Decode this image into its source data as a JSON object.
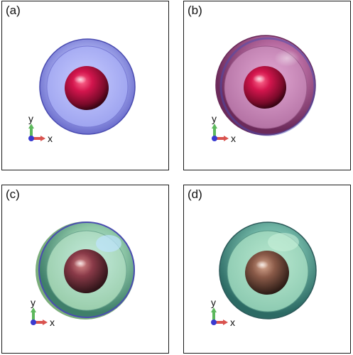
{
  "panels": [
    {
      "label": "(a)"
    },
    {
      "label": "(b)"
    },
    {
      "label": "(c)"
    },
    {
      "label": "(d)"
    }
  ],
  "axes": {
    "x_label": "x",
    "y_label": "y"
  },
  "colors": {
    "outer_blue": "#5f5fc8",
    "outer_magenta": "#9a3a78",
    "outer_green": "#4f9a7a",
    "core_red": "#c8154a",
    "core_brown": "#8a5a4a",
    "axis_x": "#d9534f",
    "axis_y": "#5cb85c",
    "axis_z": "#3a3ad0"
  }
}
